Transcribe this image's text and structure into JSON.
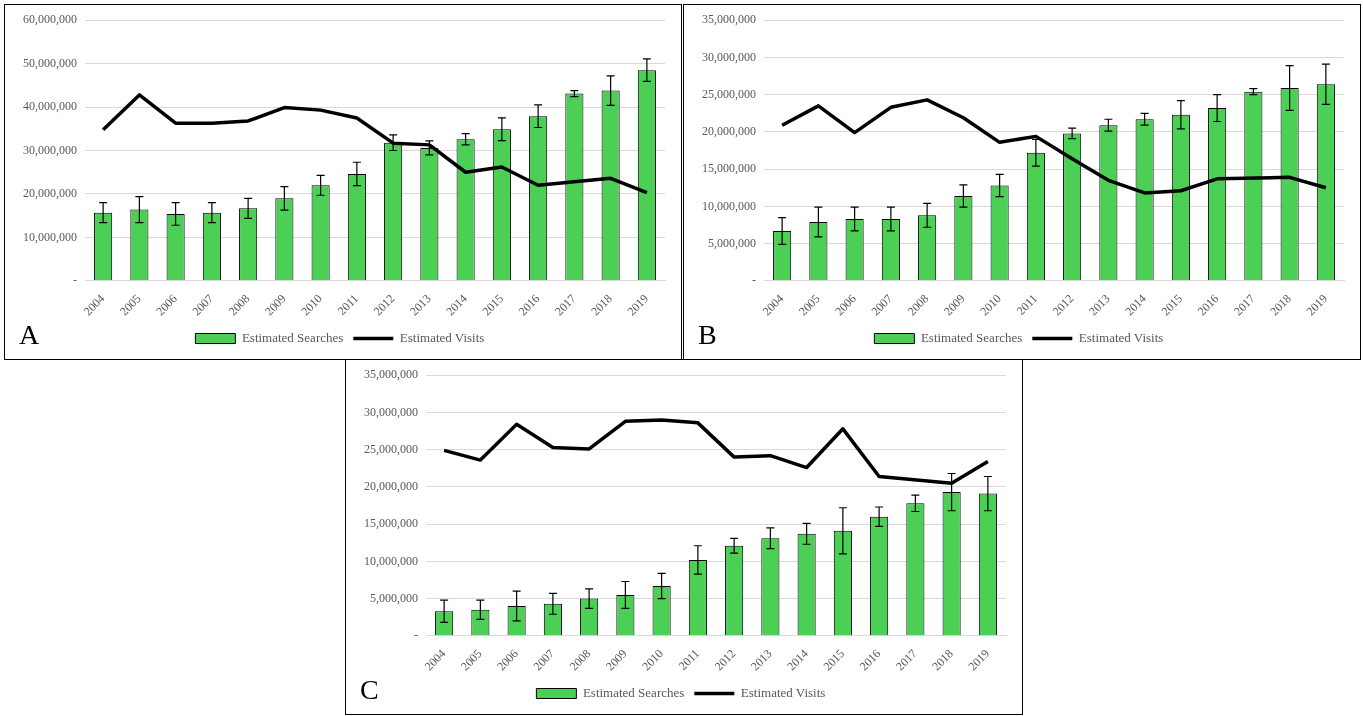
{
  "chart_data": [
    {
      "type": "bar",
      "categories": [
        "2004",
        "2005",
        "2006",
        "2007",
        "2008",
        "2009",
        "2010",
        "2011",
        "2012",
        "2013",
        "2014",
        "2015",
        "2016",
        "2017",
        "2018",
        "2019"
      ],
      "ylim": [
        0,
        60000000
      ],
      "yticks": [
        {
          "value": 0,
          "label": "-"
        },
        {
          "value": 10000000,
          "label": "10,000,000"
        },
        {
          "value": 20000000,
          "label": "20,000,000"
        },
        {
          "value": 30000000,
          "label": "30,000,000"
        },
        {
          "value": 40000000,
          "label": "40,000,000"
        },
        {
          "value": 50000000,
          "label": "50,000,000"
        },
        {
          "value": 60000000,
          "label": "60,000,000"
        }
      ],
      "grid": "y",
      "legend": "bottom",
      "annotations": [
        "A"
      ],
      "series": [
        {
          "name": "Estimated Searches",
          "color": "#4ccf55",
          "values": [
            15700000,
            16400000,
            15400000,
            15700000,
            16700000,
            19000000,
            22000000,
            24600000,
            31800000,
            30600000,
            32600000,
            34900000,
            37900000,
            43100000,
            43800000,
            48500000
          ],
          "errors": [
            2300000,
            3000000,
            2600000,
            2300000,
            2300000,
            2700000,
            2300000,
            2700000,
            1800000,
            1600000,
            1300000,
            2600000,
            2600000,
            700000,
            3400000,
            2600000
          ]
        },
        {
          "name": "Estimated Visits",
          "type": "line",
          "color": "#000000",
          "values": [
            34800000,
            42800000,
            36300000,
            36300000,
            36800000,
            39900000,
            39300000,
            37500000,
            31700000,
            31300000,
            25000000,
            26200000,
            22000000,
            null,
            23600000,
            20300000
          ]
        }
      ]
    },
    {
      "type": "bar",
      "categories": [
        "2004",
        "2005",
        "2006",
        "2007",
        "2008",
        "2009",
        "2010",
        "2011",
        "2012",
        "2013",
        "2014",
        "2015",
        "2016",
        "2017",
        "2018",
        "2019"
      ],
      "ylim": [
        0,
        35000000
      ],
      "yticks": [
        {
          "value": 0,
          "label": "-"
        },
        {
          "value": 5000000,
          "label": "5,000,000"
        },
        {
          "value": 10000000,
          "label": "10,000,000"
        },
        {
          "value": 15000000,
          "label": "15,000,000"
        },
        {
          "value": 20000000,
          "label": "20,000,000"
        },
        {
          "value": 25000000,
          "label": "25,000,000"
        },
        {
          "value": 30000000,
          "label": "30,000,000"
        },
        {
          "value": 35000000,
          "label": "35,000,000"
        }
      ],
      "grid": "y",
      "legend": "bottom",
      "annotations": [
        "B"
      ],
      "series": [
        {
          "name": "Estimated Searches",
          "color": "#4ccf55",
          "values": [
            6700000,
            7900000,
            8300000,
            8300000,
            8800000,
            11400000,
            12800000,
            17200000,
            19800000,
            20900000,
            21700000,
            22300000,
            23200000,
            25400000,
            25900000,
            26400000
          ],
          "errors": [
            1800000,
            2000000,
            1600000,
            1600000,
            1600000,
            1500000,
            1500000,
            1800000,
            700000,
            800000,
            800000,
            1900000,
            1800000,
            400000,
            3000000,
            2700000
          ]
        },
        {
          "name": "Estimated Visits",
          "type": "line",
          "color": "#000000",
          "values": [
            20900000,
            23500000,
            19900000,
            23300000,
            24300000,
            21900000,
            18600000,
            19400000,
            16400000,
            13500000,
            11800000,
            12100000,
            13700000,
            null,
            13900000,
            12500000
          ]
        }
      ]
    },
    {
      "type": "bar",
      "categories": [
        "2004",
        "2005",
        "2006",
        "2007",
        "2008",
        "2009",
        "2010",
        "2011",
        "2012",
        "2013",
        "2014",
        "2015",
        "2016",
        "2017",
        "2018",
        "2019"
      ],
      "ylim": [
        0,
        35000000
      ],
      "yticks": [
        {
          "value": 0,
          "label": "-"
        },
        {
          "value": 5000000,
          "label": "5,000,000"
        },
        {
          "value": 10000000,
          "label": "10,000,000"
        },
        {
          "value": 15000000,
          "label": "15,000,000"
        },
        {
          "value": 20000000,
          "label": "20,000,000"
        },
        {
          "value": 25000000,
          "label": "25,000,000"
        },
        {
          "value": 30000000,
          "label": "30,000,000"
        },
        {
          "value": 35000000,
          "label": "35,000,000"
        }
      ],
      "grid": "y",
      "legend": "bottom",
      "annotations": [
        "C"
      ],
      "series": [
        {
          "name": "Estimated Searches",
          "color": "#4ccf55",
          "values": [
            3300000,
            3500000,
            4000000,
            4300000,
            5000000,
            5500000,
            6700000,
            10200000,
            12100000,
            13100000,
            13700000,
            14100000,
            16000000,
            17800000,
            19300000,
            19100000
          ],
          "errors": [
            1500000,
            1300000,
            2000000,
            1400000,
            1300000,
            1800000,
            1700000,
            1900000,
            1000000,
            1400000,
            1400000,
            3100000,
            1300000,
            1100000,
            2500000,
            2300000
          ]
        },
        {
          "name": "Estimated Visits",
          "type": "line",
          "color": "#000000",
          "values": [
            24900000,
            23600000,
            28400000,
            25300000,
            25100000,
            28800000,
            29000000,
            28600000,
            24000000,
            24200000,
            22600000,
            27800000,
            21400000,
            null,
            20500000,
            23400000
          ]
        }
      ]
    }
  ]
}
